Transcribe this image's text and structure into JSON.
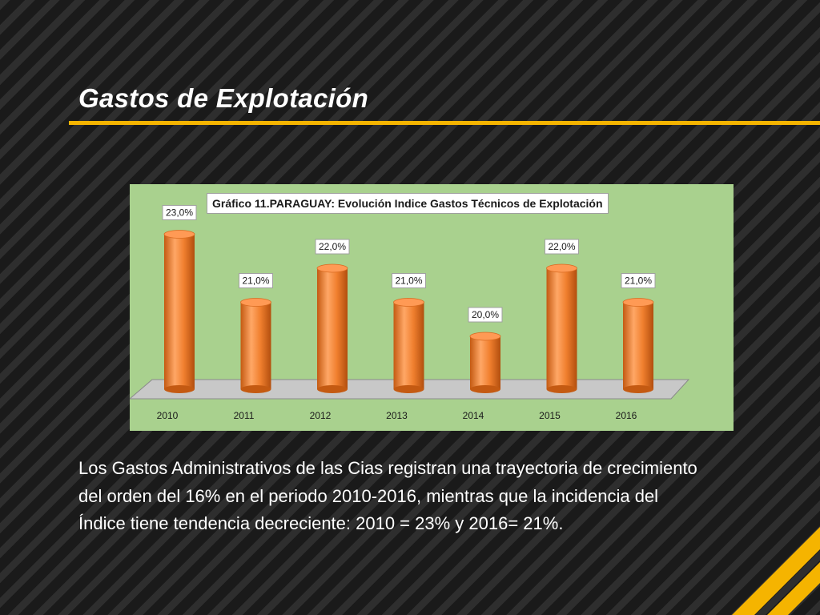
{
  "slide": {
    "title": "Gastos de Explotación",
    "body": "Los Gastos Administrativos de las Cias registran una trayectoria de crecimiento del orden del 16% en el periodo 2010-2016, mientras que la incidencia del Índice  tiene tendencia decreciente: 2010 = 23%  y 2016= 21%."
  },
  "colors": {
    "accent": "#f5b400",
    "chart_background": "#a9d18e",
    "bar": "#f07f2e",
    "bar_dark": "#c45a12",
    "bar_light": "#ffa766",
    "floor": "#c8c8c8"
  },
  "chart_data": {
    "type": "bar",
    "style": "3d-cylinder",
    "title": "Gráfico 11.PARAGUAY: Evolución Indice Gastos Técnicos de Explotación",
    "categories": [
      "2010",
      "2011",
      "2012",
      "2013",
      "2014",
      "2015",
      "2016"
    ],
    "values": [
      23.0,
      21.0,
      22.0,
      21.0,
      20.0,
      22.0,
      21.0
    ],
    "data_labels": [
      "23,0%",
      "21,0%",
      "22,0%",
      "21,0%",
      "20,0%",
      "22,0%",
      "21,0%"
    ],
    "xlabel": "",
    "ylabel": "",
    "grid": false,
    "legend": "none"
  }
}
